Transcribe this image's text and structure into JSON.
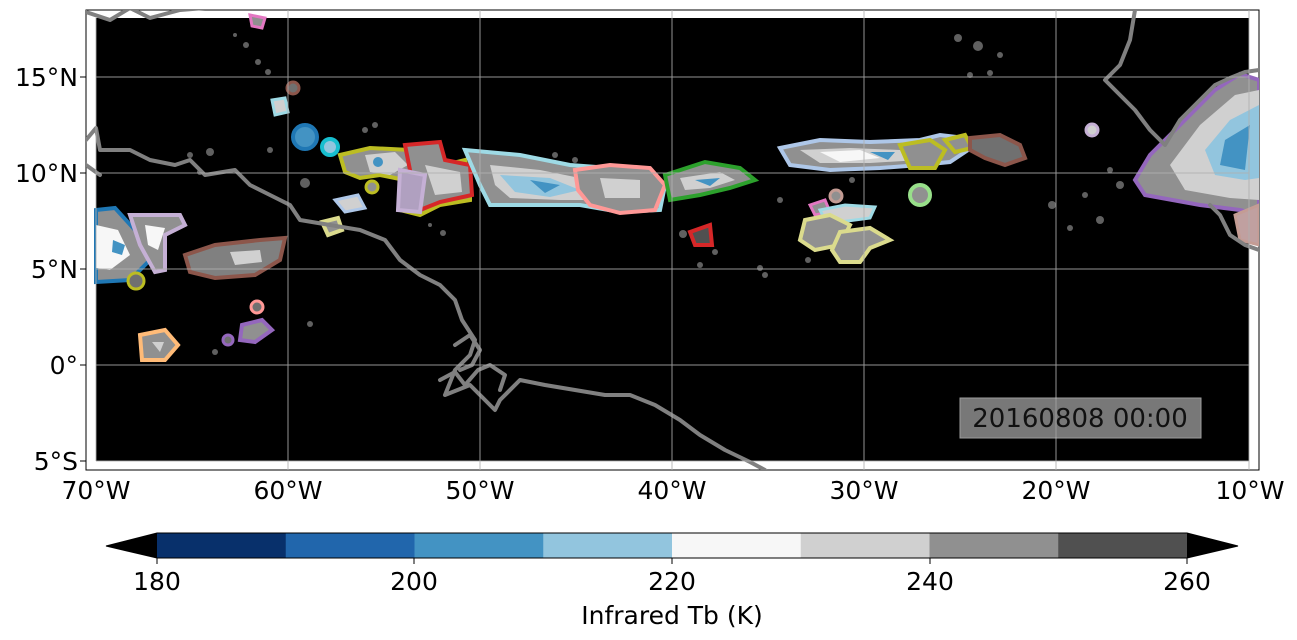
{
  "map": {
    "timestamp": "20160808 00:00",
    "lat_ticks": [
      "15°N",
      "10°N",
      "5°N",
      "0°",
      "5°S"
    ],
    "lon_ticks": [
      "70°W",
      "60°W",
      "50°W",
      "40°W",
      "30°W",
      "20°W",
      "10°W"
    ],
    "extent": {
      "lon": [
        -70,
        -10
      ],
      "lat": [
        -5,
        18
      ]
    },
    "background_color": "#000000",
    "coastline_color": "#808080",
    "gridlines": true
  },
  "colorbar": {
    "label": "Infrared Tb (K)",
    "tick_labels": [
      "180",
      "200",
      "220",
      "240",
      "260"
    ],
    "levels": [
      180,
      190,
      200,
      210,
      220,
      230,
      240,
      250,
      260
    ],
    "colors": [
      "#08306b",
      "#2166ac",
      "#4393c3",
      "#92c5de",
      "#f7f7f7",
      "#d0d0d0",
      "#909090",
      "#505050"
    ],
    "extend": "both"
  }
}
